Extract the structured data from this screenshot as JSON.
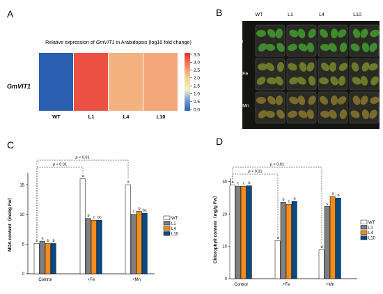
{
  "panels": {
    "a": "A",
    "b": "B",
    "c": "C",
    "d": "D"
  },
  "colors": {
    "wt": "#ffffff",
    "l1": "#808080",
    "l4": "#f28c1c",
    "l10": "#0a4a84",
    "heat_low": "#2b5fb0",
    "heat_high": "#e8312c"
  },
  "chart_data": [
    {
      "panel": "A",
      "type": "heatmap",
      "title_prefix": "Relative expression of ",
      "title_gene": "GmVIT1",
      "title_suffix": " in Arabidopsis (log10 fold change)",
      "row_label": "GmVIT1",
      "categories": [
        "WT",
        "L1",
        "L4",
        "L10"
      ],
      "values": [
        0.0,
        3.2,
        2.3,
        2.4
      ],
      "colorbar_range": [
        0,
        3.5
      ],
      "colorbar_ticks": [
        "3.5",
        "3.0",
        "2.5",
        "2.0",
        "1.5",
        "1.0",
        "0.5",
        "0.0"
      ]
    },
    {
      "panel": "C",
      "type": "bar",
      "ylabel": "MDA content（mol/g Fw）",
      "ylim": [
        0,
        17
      ],
      "yticks": [
        "0",
        "5",
        "10",
        "15"
      ],
      "categories": [
        "Control",
        "+Fe",
        "+Mn"
      ],
      "series": [
        {
          "name": "WT",
          "values": [
            5.1,
            16.0,
            15.0
          ],
          "letters": [
            "b",
            "a",
            "a"
          ]
        },
        {
          "name": "L1",
          "values": [
            5.5,
            9.3,
            10.0
          ],
          "letters": [
            "a",
            "b",
            "c"
          ]
        },
        {
          "name": "L4",
          "values": [
            5.1,
            9.0,
            10.5
          ],
          "letters": [
            "b",
            "c",
            "b"
          ]
        },
        {
          "name": "L10",
          "values": [
            5.1,
            9.0,
            10.2
          ],
          "letters": [
            "b",
            "bc",
            "bc"
          ]
        }
      ],
      "significance": [
        "p < 0.01",
        "p < 0.01"
      ]
    },
    {
      "panel": "D",
      "type": "bar",
      "ylabel": "Chlorophyll content（mg/g Fw）",
      "ylim": [
        0,
        31
      ],
      "yticks": [
        "0",
        "10",
        "20",
        "30"
      ],
      "categories": [
        "Control",
        "+Fe",
        "+Mn"
      ],
      "series": [
        {
          "name": "WT",
          "values": [
            29.0,
            11.7,
            8.9
          ],
          "letters": [
            "a",
            "d",
            "d"
          ]
        },
        {
          "name": "L1",
          "values": [
            28.6,
            23.6,
            22.3
          ],
          "letters": [
            "c",
            "b",
            "c"
          ]
        },
        {
          "name": "L4",
          "values": [
            28.6,
            23.0,
            25.4
          ],
          "letters": [
            "c",
            "c",
            "a"
          ]
        },
        {
          "name": "L10",
          "values": [
            28.7,
            23.9,
            24.9
          ],
          "letters": [
            "b",
            "a",
            "b"
          ]
        }
      ],
      "significance": [
        "p < 0.01",
        "p < 0.01"
      ]
    }
  ],
  "photo": {
    "columns": [
      "WT",
      "L1",
      "L4",
      "L10"
    ],
    "rows": [
      "N",
      "+Fe",
      "+Mn"
    ]
  }
}
